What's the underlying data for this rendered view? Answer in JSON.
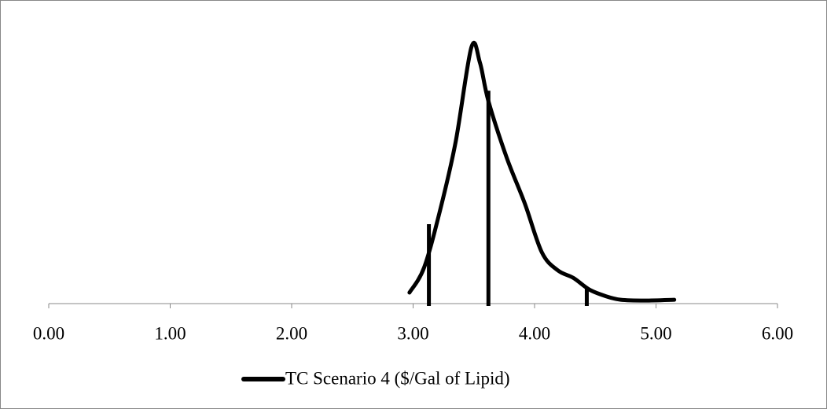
{
  "chart_data": {
    "type": "line",
    "x": [
      2.97,
      3.09,
      3.22,
      3.35,
      3.48,
      3.55,
      3.62,
      3.77,
      3.92,
      4.06,
      4.19,
      4.32,
      4.45,
      4.58,
      4.71,
      4.91,
      5.15
    ],
    "series": [
      {
        "name": "TC Scenario 4 ($/Gal of Lipid)",
        "color": "#000000",
        "values": [
          0.043,
          0.14,
          0.36,
          0.63,
          1.0,
          0.94,
          0.79,
          0.57,
          0.39,
          0.2,
          0.13,
          0.1,
          0.055,
          0.03,
          0.015,
          0.012,
          0.015
        ]
      }
    ],
    "markers": {
      "x": [
        3.13,
        3.62,
        4.43
      ],
      "values": [
        0.31,
        0.83,
        0.065
      ]
    },
    "xlim": [
      0,
      6
    ],
    "ylim": [
      0,
      1
    ],
    "xticks": [
      {
        "value": 0,
        "label": "0.00"
      },
      {
        "value": 1,
        "label": "1.00"
      },
      {
        "value": 2,
        "label": "2.00"
      },
      {
        "value": 3,
        "label": "3.00"
      },
      {
        "value": 4,
        "label": "4.00"
      },
      {
        "value": 5,
        "label": "5.00"
      },
      {
        "value": 6,
        "label": "6.00"
      }
    ],
    "legend": "bottom"
  }
}
